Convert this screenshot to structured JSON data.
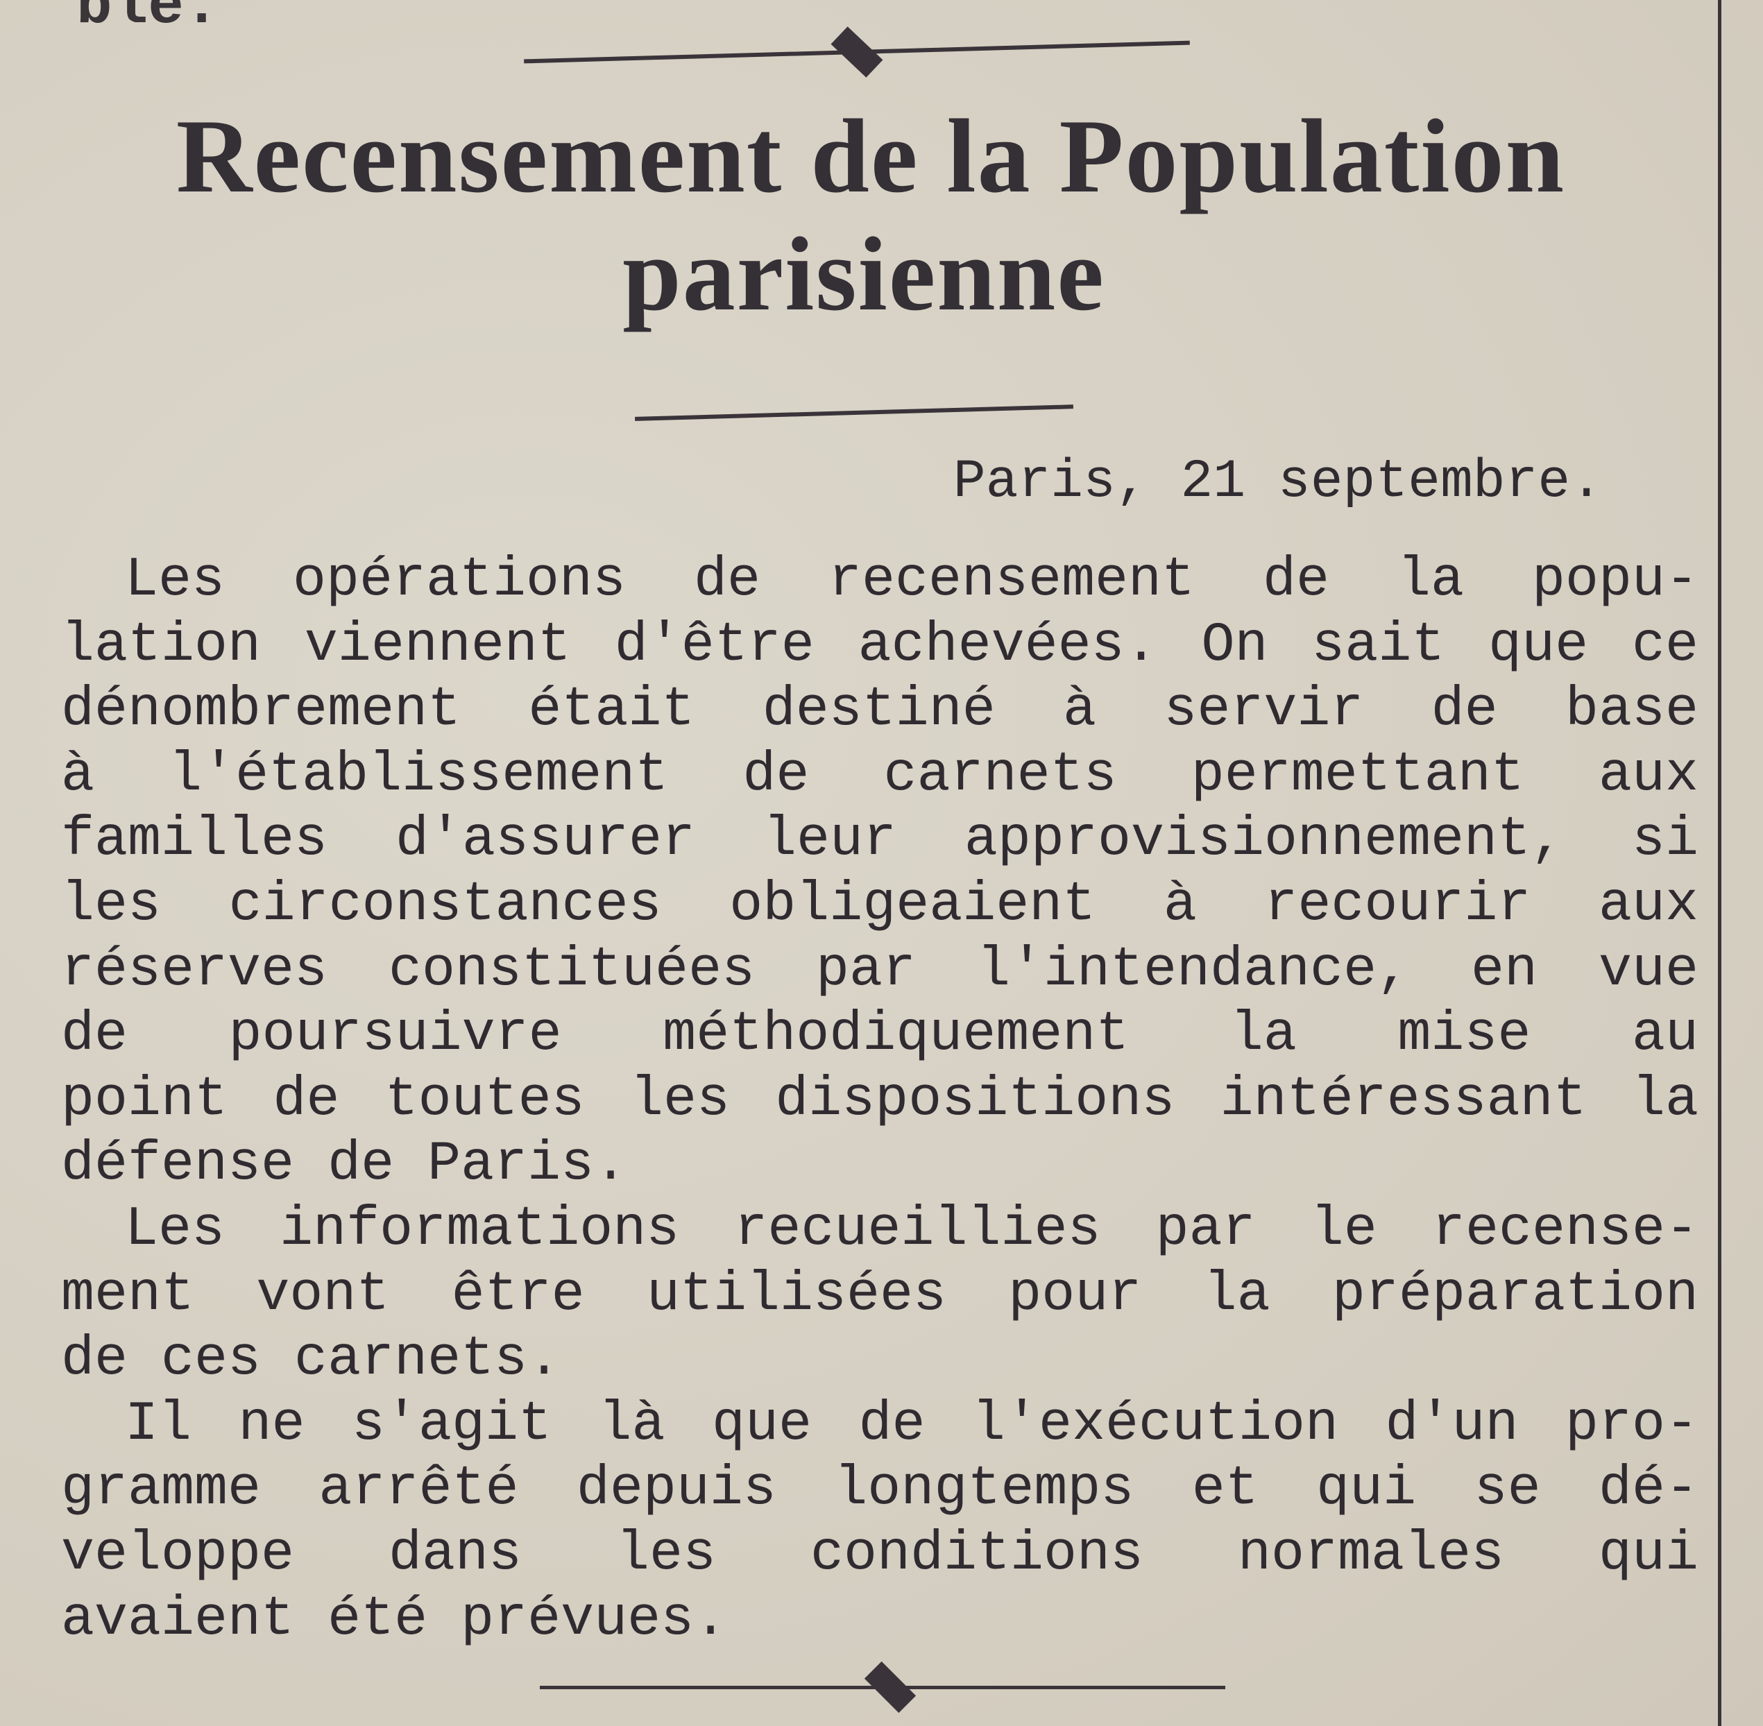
{
  "continuation": "ble.",
  "headline": [
    "Recensement de la Population",
    "parisienne"
  ],
  "dateline": "Paris, 21 septembre.",
  "paragraphs": [
    {
      "lines": [
        "Les opérations de recensement de la popu-",
        "lation viennent d'être achevées. On sait que ce",
        "dénombrement était destiné à servir de base",
        "à l'établissement de carnets permettant aux",
        "familles d'assurer leur approvisionnement, si",
        "les circonstances obligeaient à recourir aux",
        "réserves constituées par l'intendance, en vue",
        "de poursuivre méthodiquement la mise au",
        "point de toutes les dispositions intéressant la",
        "défense de Paris."
      ]
    },
    {
      "lines": [
        "Les informations recueillies par le recense-",
        "ment vont être utilisées pour la préparation",
        "de ces carnets."
      ]
    },
    {
      "lines": [
        "Il ne s'agit là que de l'exécution d'un pro-",
        "gramme arrêté depuis longtemps et qui se dé-",
        "veloppe dans les conditions normales qui",
        "avaient été prévues."
      ]
    }
  ],
  "colors": {
    "paper": "#d8d2c5",
    "ink": "#2f2b30"
  }
}
